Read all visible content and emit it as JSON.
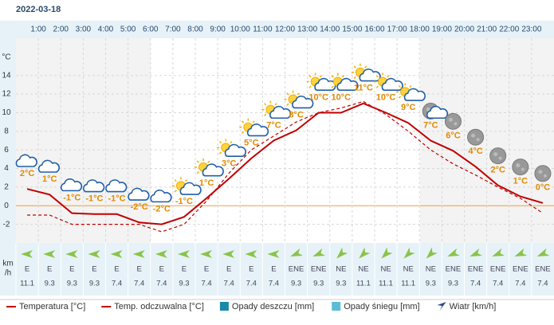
{
  "chart_data": {
    "type": "line",
    "date": "2022-03-18",
    "y_axis_label": "°C",
    "categories": [
      null,
      "1:00",
      "2:00",
      "3:00",
      "4:00",
      "5:00",
      "6:00",
      "7:00",
      "8:00",
      "9:00",
      "10:00",
      "11:00",
      "12:00",
      "13:00",
      "14:00",
      "15:00",
      "16:00",
      "17:00",
      "18:00",
      "19:00",
      "20:00",
      "21:00",
      "22:00",
      "23:00"
    ],
    "ylim": [
      -4,
      18
    ],
    "yticks": [
      -2,
      0,
      2,
      4,
      6,
      8,
      10,
      12,
      14
    ],
    "grid": true,
    "series": [
      {
        "name": "Temperatura [°C]",
        "color": "#c00000",
        "dash": false,
        "values": [
          1.8,
          1.2,
          -0.8,
          -0.9,
          -0.9,
          -1.8,
          -2.0,
          -1.2,
          0.8,
          2.9,
          5.1,
          7.0,
          8.1,
          10.0,
          10.0,
          11.0,
          10.0,
          8.9,
          7.0,
          5.9,
          4.2,
          2.2,
          1.0,
          0.3
        ],
        "value_labels": [
          "2°C",
          "1°C",
          "-1°C",
          "-1°C",
          "-1°C",
          "-2°C",
          "-2°C",
          "-1°C",
          "1°C",
          "3°C",
          "5°C",
          "7°C",
          "8°C",
          "10°C",
          "10°C",
          "11°C",
          "10°C",
          "9°C",
          "7°C",
          "6°C",
          "4°C",
          "2°C",
          "1°C",
          "0°C"
        ]
      },
      {
        "name": "Temp. odczuwalna [°C]",
        "color": "#c00000",
        "dash": true,
        "values": [
          -1.0,
          -1.0,
          -2.0,
          -2.0,
          -2.0,
          -2.0,
          -2.8,
          -2.0,
          0.5,
          3.5,
          6.0,
          7.5,
          9.0,
          10.0,
          10.5,
          11.2,
          9.8,
          8.0,
          6.0,
          4.5,
          3.3,
          2.0,
          0.8,
          -0.8
        ]
      }
    ],
    "other_legend": [
      {
        "name": "Opady deszczu [mm]",
        "color": "#1a8aa8"
      },
      {
        "name": "Opady śniegu [mm]",
        "color": "#5bbcd6"
      },
      {
        "name": "Wiatr [km/h]",
        "color": "#2a4a7a"
      }
    ],
    "wind_unit_lines": [
      "km",
      "/h"
    ],
    "wind_direction": [
      "E",
      "E",
      "E",
      "E",
      "E",
      "E",
      "E",
      "E",
      "E",
      "E",
      "E",
      "E",
      "ENE",
      "ENE",
      "NE",
      "NE",
      "NE",
      "NE",
      "NE",
      "ENE",
      "ENE",
      "ENE",
      "ENE",
      "ENE"
    ],
    "wind_speed": [
      11.1,
      9.3,
      9.3,
      9.3,
      7.4,
      7.4,
      7.4,
      9.3,
      7.4,
      7.4,
      7.4,
      7.4,
      9.3,
      9.3,
      9.3,
      11.1,
      11.1,
      11.1,
      9.3,
      9.3,
      7.4,
      7.4,
      7.4,
      7.4
    ]
  }
}
